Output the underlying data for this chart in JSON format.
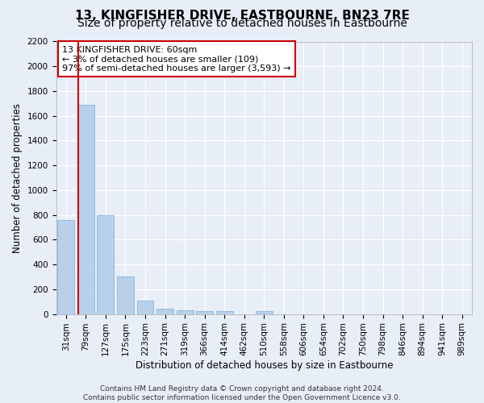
{
  "title": "13, KINGFISHER DRIVE, EASTBOURNE, BN23 7RE",
  "subtitle": "Size of property relative to detached houses in Eastbourne",
  "xlabel": "Distribution of detached houses by size in Eastbourne",
  "ylabel": "Number of detached properties",
  "categories": [
    "31sqm",
    "79sqm",
    "127sqm",
    "175sqm",
    "223sqm",
    "271sqm",
    "319sqm",
    "366sqm",
    "414sqm",
    "462sqm",
    "510sqm",
    "558sqm",
    "606sqm",
    "654sqm",
    "702sqm",
    "750sqm",
    "798sqm",
    "846sqm",
    "894sqm",
    "941sqm",
    "989sqm"
  ],
  "values": [
    760,
    1690,
    795,
    300,
    110,
    45,
    32,
    25,
    22,
    0,
    22,
    0,
    0,
    0,
    0,
    0,
    0,
    0,
    0,
    0,
    0
  ],
  "bar_color": "#b8d0ea",
  "bar_edge_color": "#7aadd4",
  "property_line_color": "#cc0000",
  "annotation_text": "13 KINGFISHER DRIVE: 60sqm\n← 3% of detached houses are smaller (109)\n97% of semi-detached houses are larger (3,593) →",
  "annotation_box_color": "#ffffff",
  "annotation_box_edge": "#cc0000",
  "ylim": [
    0,
    2200
  ],
  "yticks": [
    0,
    200,
    400,
    600,
    800,
    1000,
    1200,
    1400,
    1600,
    1800,
    2000,
    2200
  ],
  "background_color": "#e8eef8",
  "grid_color": "#ffffff",
  "footer": "Contains HM Land Registry data © Crown copyright and database right 2024.\nContains public sector information licensed under the Open Government Licence v3.0.",
  "title_fontsize": 11,
  "subtitle_fontsize": 10,
  "xlabel_fontsize": 8.5,
  "ylabel_fontsize": 8.5,
  "tick_fontsize": 7.5,
  "annotation_fontsize": 8,
  "footer_fontsize": 6.5
}
